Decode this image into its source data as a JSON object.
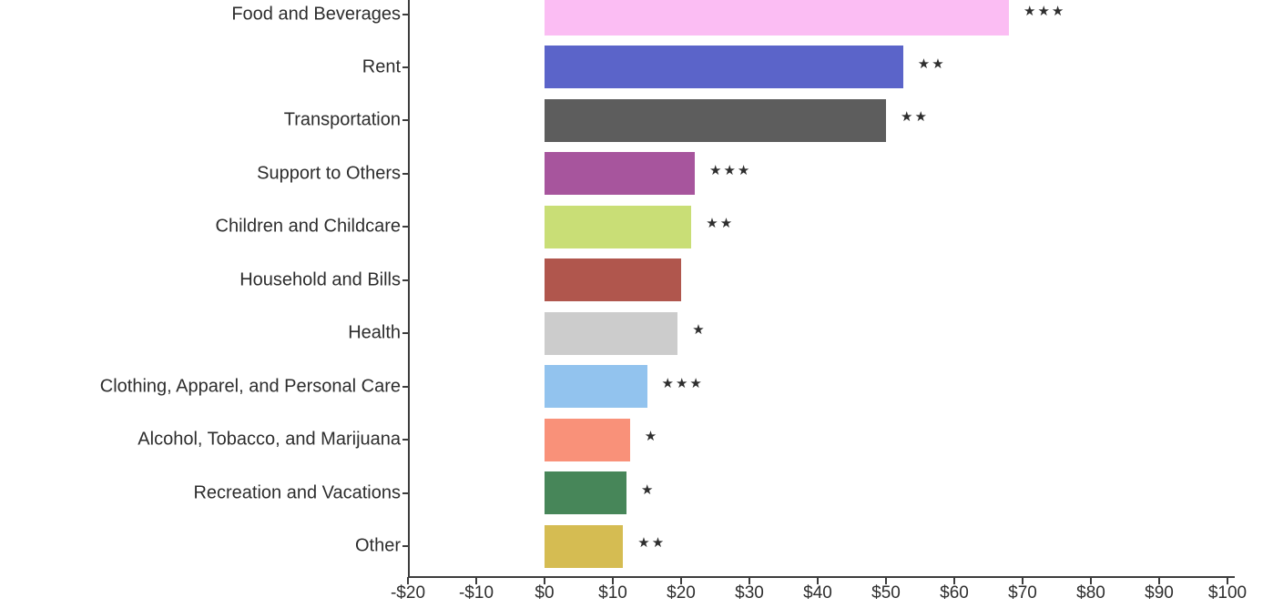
{
  "chart_data": {
    "type": "bar",
    "orientation": "horizontal",
    "title": "",
    "xlabel": "",
    "ylabel": "",
    "xlim": [
      -20,
      100
    ],
    "grid": false,
    "legend": false,
    "x_tick_values": [
      -20,
      -10,
      0,
      10,
      20,
      30,
      40,
      50,
      60,
      70,
      80,
      90,
      100
    ],
    "x_tick_labels": [
      "-$20",
      "-$10",
      "$0",
      "$10",
      "$20",
      "$30",
      "$40",
      "$50",
      "$60",
      "$70",
      "$80",
      "$90",
      "$100"
    ],
    "categories": [
      "Food and Beverages",
      "Rent",
      "Transportation",
      "Support to Others",
      "Children and Childcare",
      "Household and Bills",
      "Health",
      "Clothing, Apparel, and Personal Care",
      "Alcohol, Tobacco, and Marijuana",
      "Recreation and Vacations",
      "Other"
    ],
    "values": [
      68,
      52.5,
      50,
      22,
      21.5,
      20,
      19.5,
      15,
      12.5,
      12,
      11.5
    ],
    "significance": [
      "***",
      "**",
      "**",
      "***",
      "**",
      "",
      "*",
      "***",
      "*",
      "*",
      "**"
    ],
    "bar_colors": [
      "#fbbdf3",
      "#5b64c9",
      "#5d5d5d",
      "#a7559d",
      "#c9de76",
      "#b0564d",
      "#cccccc",
      "#92c3ee",
      "#f99179",
      "#478659",
      "#d5bc52"
    ]
  },
  "style": {
    "axis_color": "#3d3d3d",
    "text_color": "#2d2d2d",
    "star_color": "#2e2e2e",
    "background": "#ffffff",
    "star_glyph": "★"
  }
}
